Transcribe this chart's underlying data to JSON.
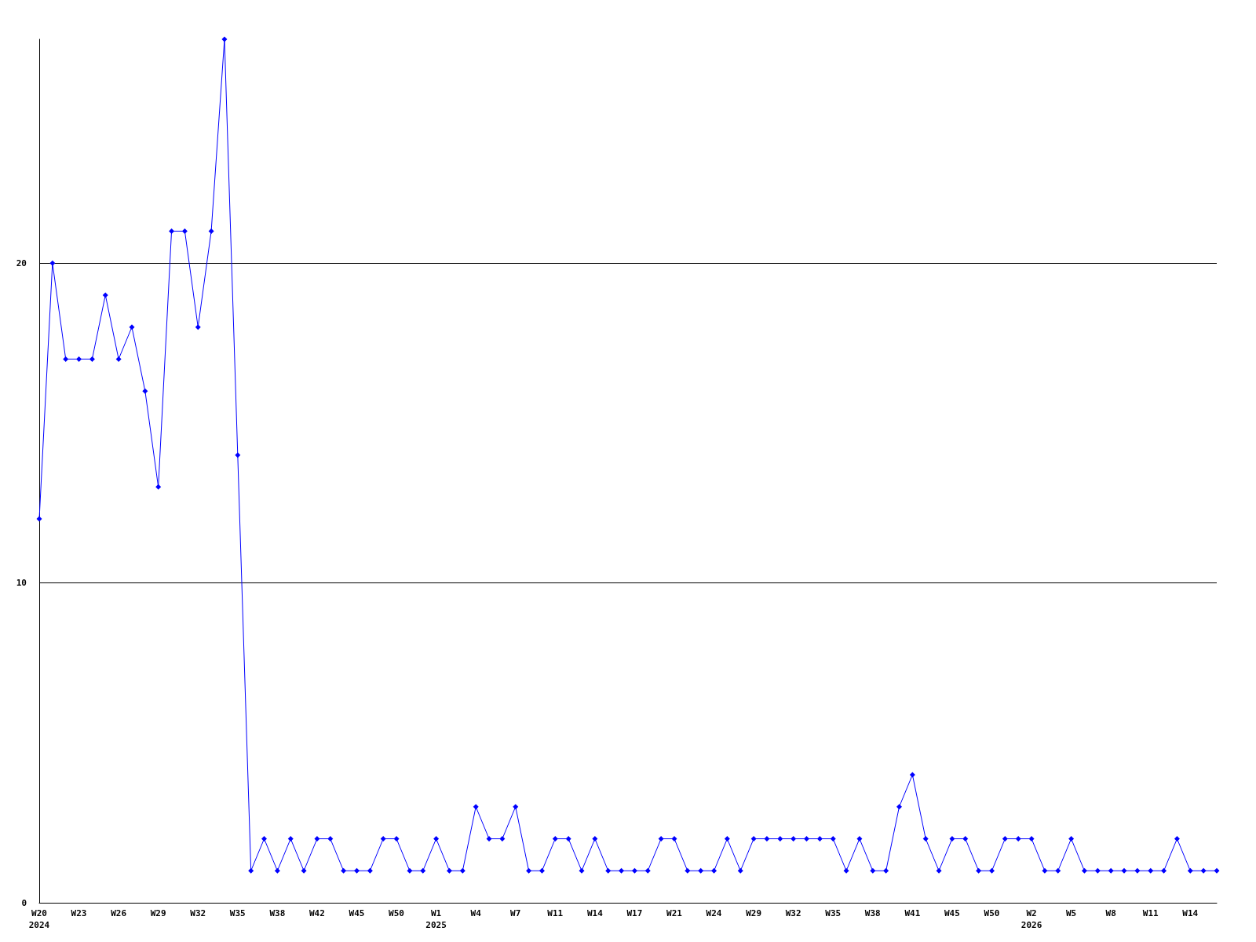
{
  "chart_data": {
    "type": "line",
    "categories": [
      "W20\n2024",
      null,
      null,
      "W23",
      null,
      null,
      "W26",
      null,
      null,
      "W29",
      null,
      null,
      "W32",
      null,
      null,
      "W35",
      null,
      null,
      "W38",
      null,
      null,
      "W42",
      null,
      null,
      "W45",
      null,
      null,
      "W50",
      null,
      null,
      "W1\n2025",
      null,
      null,
      "W4",
      null,
      null,
      "W7",
      null,
      null,
      "W11",
      null,
      null,
      "W14",
      null,
      null,
      "W17",
      null,
      null,
      "W21",
      null,
      null,
      "W24",
      null,
      null,
      "W29",
      null,
      null,
      "W32",
      null,
      null,
      "W35",
      null,
      null,
      "W38",
      null,
      null,
      "W41",
      null,
      null,
      "W45",
      null,
      null,
      "W50",
      null,
      null,
      "W2\n2026",
      null,
      null,
      "W5",
      null,
      null,
      "W8",
      null,
      null,
      "W11",
      null,
      null,
      "W14",
      null,
      null
    ],
    "series": [
      {
        "color": "#0000ff",
        "values": [
          12,
          20,
          17,
          17,
          17,
          19,
          17,
          18,
          16,
          13,
          21,
          21,
          18,
          21,
          27,
          14,
          1,
          2,
          1,
          2,
          1,
          2,
          2,
          1,
          1,
          1,
          2,
          2,
          1,
          1,
          2,
          1,
          1,
          3,
          2,
          2,
          3,
          1,
          1,
          2,
          2,
          1,
          2,
          1,
          1,
          1,
          1,
          2,
          2,
          1,
          1,
          1,
          2,
          1,
          2,
          2,
          2,
          2,
          2,
          2,
          2,
          1,
          2,
          1,
          1,
          3,
          4,
          2,
          1,
          2,
          2,
          1,
          1,
          2,
          2,
          2,
          1,
          1,
          2,
          1,
          1,
          1,
          1,
          1,
          1,
          1,
          2,
          1,
          1,
          1
        ]
      }
    ],
    "ylim": [
      0,
      27
    ],
    "yticks": [
      0,
      10,
      20
    ],
    "grid": "y",
    "marker": "diamond",
    "line_style": "solid"
  }
}
